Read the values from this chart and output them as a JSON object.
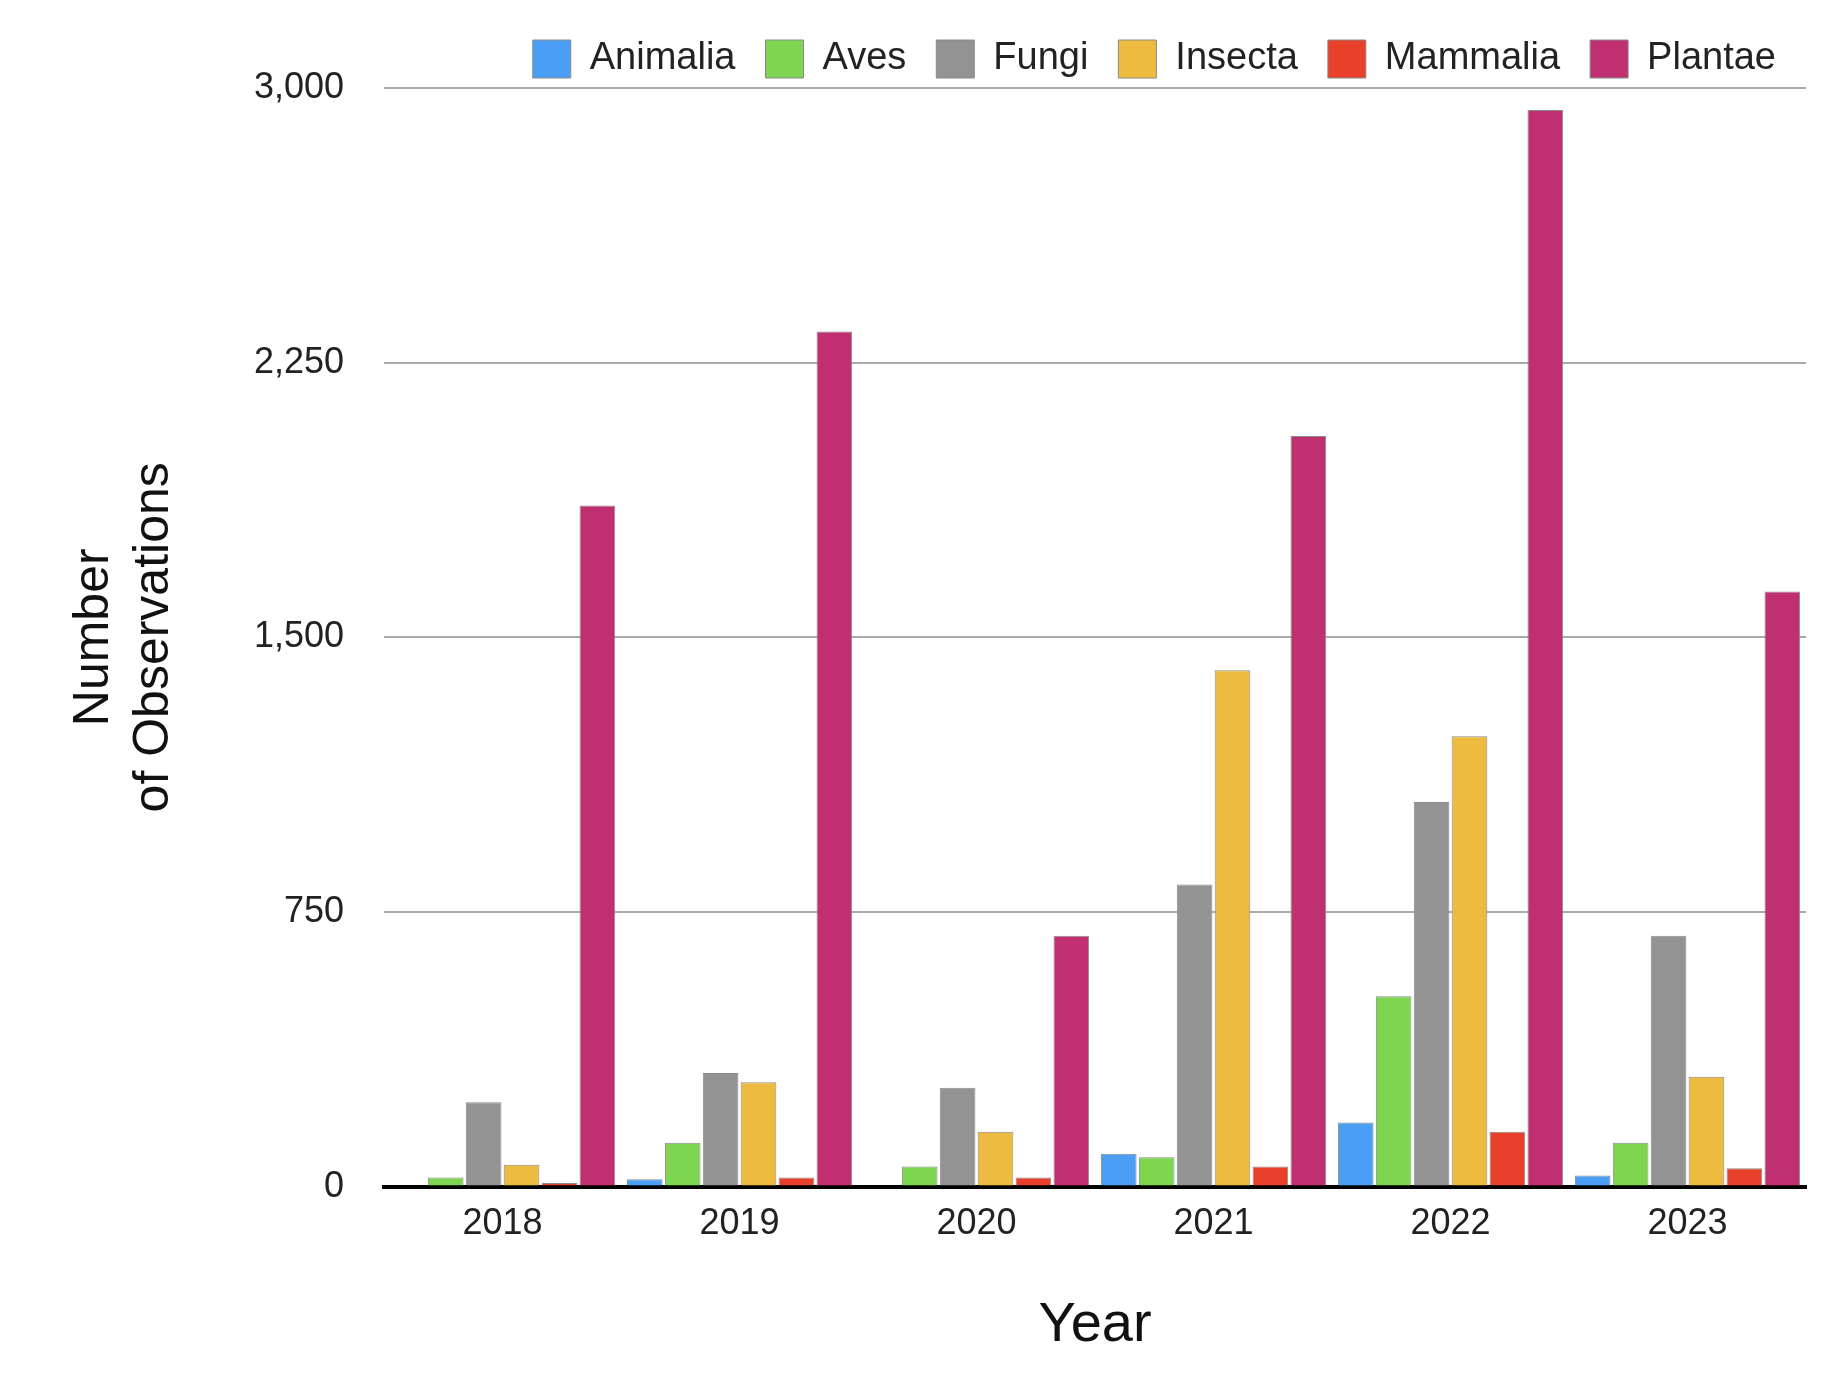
{
  "chart_data": {
    "type": "bar",
    "xlabel": "Year",
    "ylabel": "Number\nof Observations",
    "categories": [
      "2018",
      "2019",
      "2020",
      "2021",
      "2022",
      "2023"
    ],
    "series": [
      {
        "name": "Animalia",
        "color": "#4a9ff5",
        "values": [
          0,
          20,
          0,
          90,
          175,
          30
        ]
      },
      {
        "name": "Aves",
        "color": "#7ed650",
        "values": [
          25,
          120,
          55,
          80,
          520,
          120
        ]
      },
      {
        "name": "Fungi",
        "color": "#939393",
        "values": [
          230,
          310,
          270,
          825,
          1050,
          685
        ]
      },
      {
        "name": "Insecta",
        "color": "#edbb40",
        "values": [
          60,
          285,
          150,
          1410,
          1230,
          300
        ]
      },
      {
        "name": "Mammalia",
        "color": "#e8402a",
        "values": [
          10,
          25,
          25,
          55,
          150,
          50
        ]
      },
      {
        "name": "Plantae",
        "color": "#c03070",
        "values": [
          1860,
          2335,
          685,
          2050,
          2940,
          1625
        ]
      }
    ],
    "ylim": [
      0,
      3000
    ],
    "yticks": [
      0,
      750,
      {
        "value": 1500,
        "label": "1,500"
      },
      {
        "value": 2250,
        "label": "2,250"
      },
      {
        "value": 3000,
        "label": "3,000"
      }
    ],
    "grid": "y",
    "legend": "top"
  }
}
